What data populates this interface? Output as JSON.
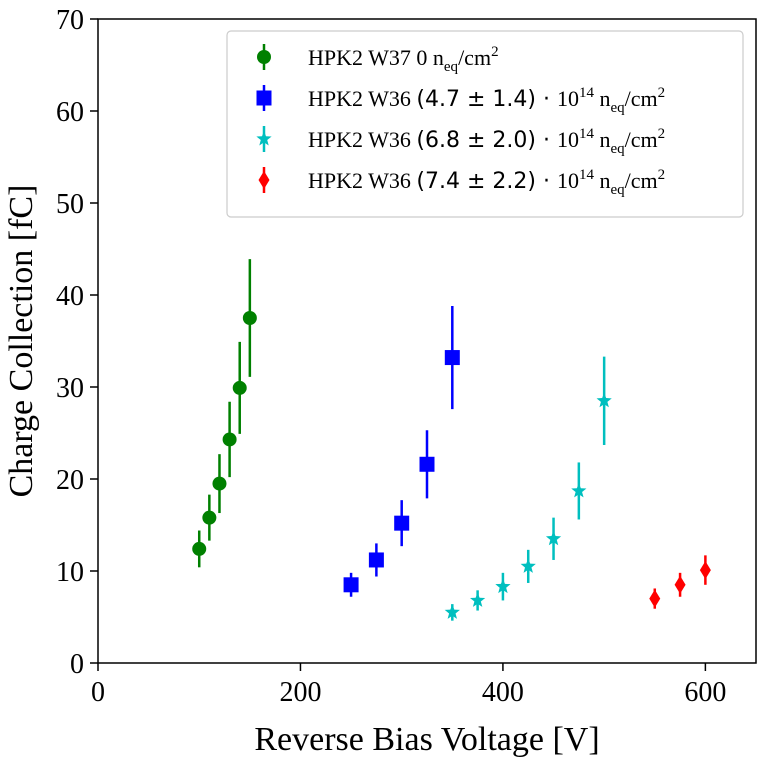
{
  "chart_data": {
    "type": "scatter",
    "title": "",
    "xlabel": "Reverse Bias Voltage [V]",
    "ylabel": "Charge Collection [fC]",
    "xlim": [
      0,
      650
    ],
    "ylim": [
      0,
      70
    ],
    "xticks": [
      0,
      200,
      400,
      600
    ],
    "yticks": [
      0,
      10,
      20,
      30,
      40,
      50,
      60,
      70
    ],
    "grid": false,
    "legend_position": "top-right",
    "series": [
      {
        "name": "HPK2 W37 0 n_eq/cm^2",
        "legend": {
          "prefix": "HPK2 W37 0 n",
          "sub": "eq",
          "suffix": "/cm",
          "sup": "2"
        },
        "color": "#008000",
        "marker": "circle",
        "x": [
          100,
          110,
          120,
          130,
          140,
          150
        ],
        "y": [
          12.4,
          15.8,
          19.5,
          24.3,
          29.9,
          37.5
        ],
        "yerr": [
          2.0,
          2.5,
          3.2,
          4.1,
          5.0,
          6.4
        ]
      },
      {
        "name": "HPK2 W36 (4.7 ± 1.4) · 10^14 n_eq/cm^2",
        "legend": {
          "prefix": "HPK2 W36 ",
          "mid": "(4.7 ± 1.4) · ",
          "base": "10",
          "exp": "14",
          "unit": " n",
          "sub": "eq",
          "suffix": "/cm",
          "sup": "2"
        },
        "color": "#0000ff",
        "marker": "square",
        "x": [
          250,
          275,
          300,
          325,
          350
        ],
        "y": [
          8.5,
          11.2,
          15.2,
          21.6,
          33.2
        ],
        "yerr": [
          1.3,
          1.8,
          2.5,
          3.7,
          5.6
        ]
      },
      {
        "name": "HPK2 W36 (6.8 ± 2.0) · 10^14 n_eq/cm^2",
        "legend": {
          "prefix": "HPK2 W36 ",
          "mid": "(6.8 ± 2.0) · ",
          "base": "10",
          "exp": "14",
          "unit": " n",
          "sub": "eq",
          "suffix": "/cm",
          "sup": "2"
        },
        "color": "#00bfbf",
        "marker": "star",
        "x": [
          350,
          375,
          400,
          425,
          450,
          475,
          500
        ],
        "y": [
          5.5,
          6.8,
          8.3,
          10.5,
          13.5,
          18.7,
          28.5
        ],
        "yerr": [
          0.9,
          1.1,
          1.5,
          1.8,
          2.3,
          3.1,
          4.8
        ]
      },
      {
        "name": "HPK2 W36 (7.4 ± 2.2) · 10^14 n_eq/cm^2",
        "legend": {
          "prefix": "HPK2 W36 ",
          "mid": "(7.4 ± 2.2) · ",
          "base": "10",
          "exp": "14",
          "unit": " n",
          "sub": "eq",
          "suffix": "/cm",
          "sup": "2"
        },
        "color": "#ff0000",
        "marker": "diamond",
        "x": [
          550,
          575,
          600
        ],
        "y": [
          7.0,
          8.5,
          10.1
        ],
        "yerr": [
          1.1,
          1.3,
          1.6
        ]
      }
    ]
  }
}
